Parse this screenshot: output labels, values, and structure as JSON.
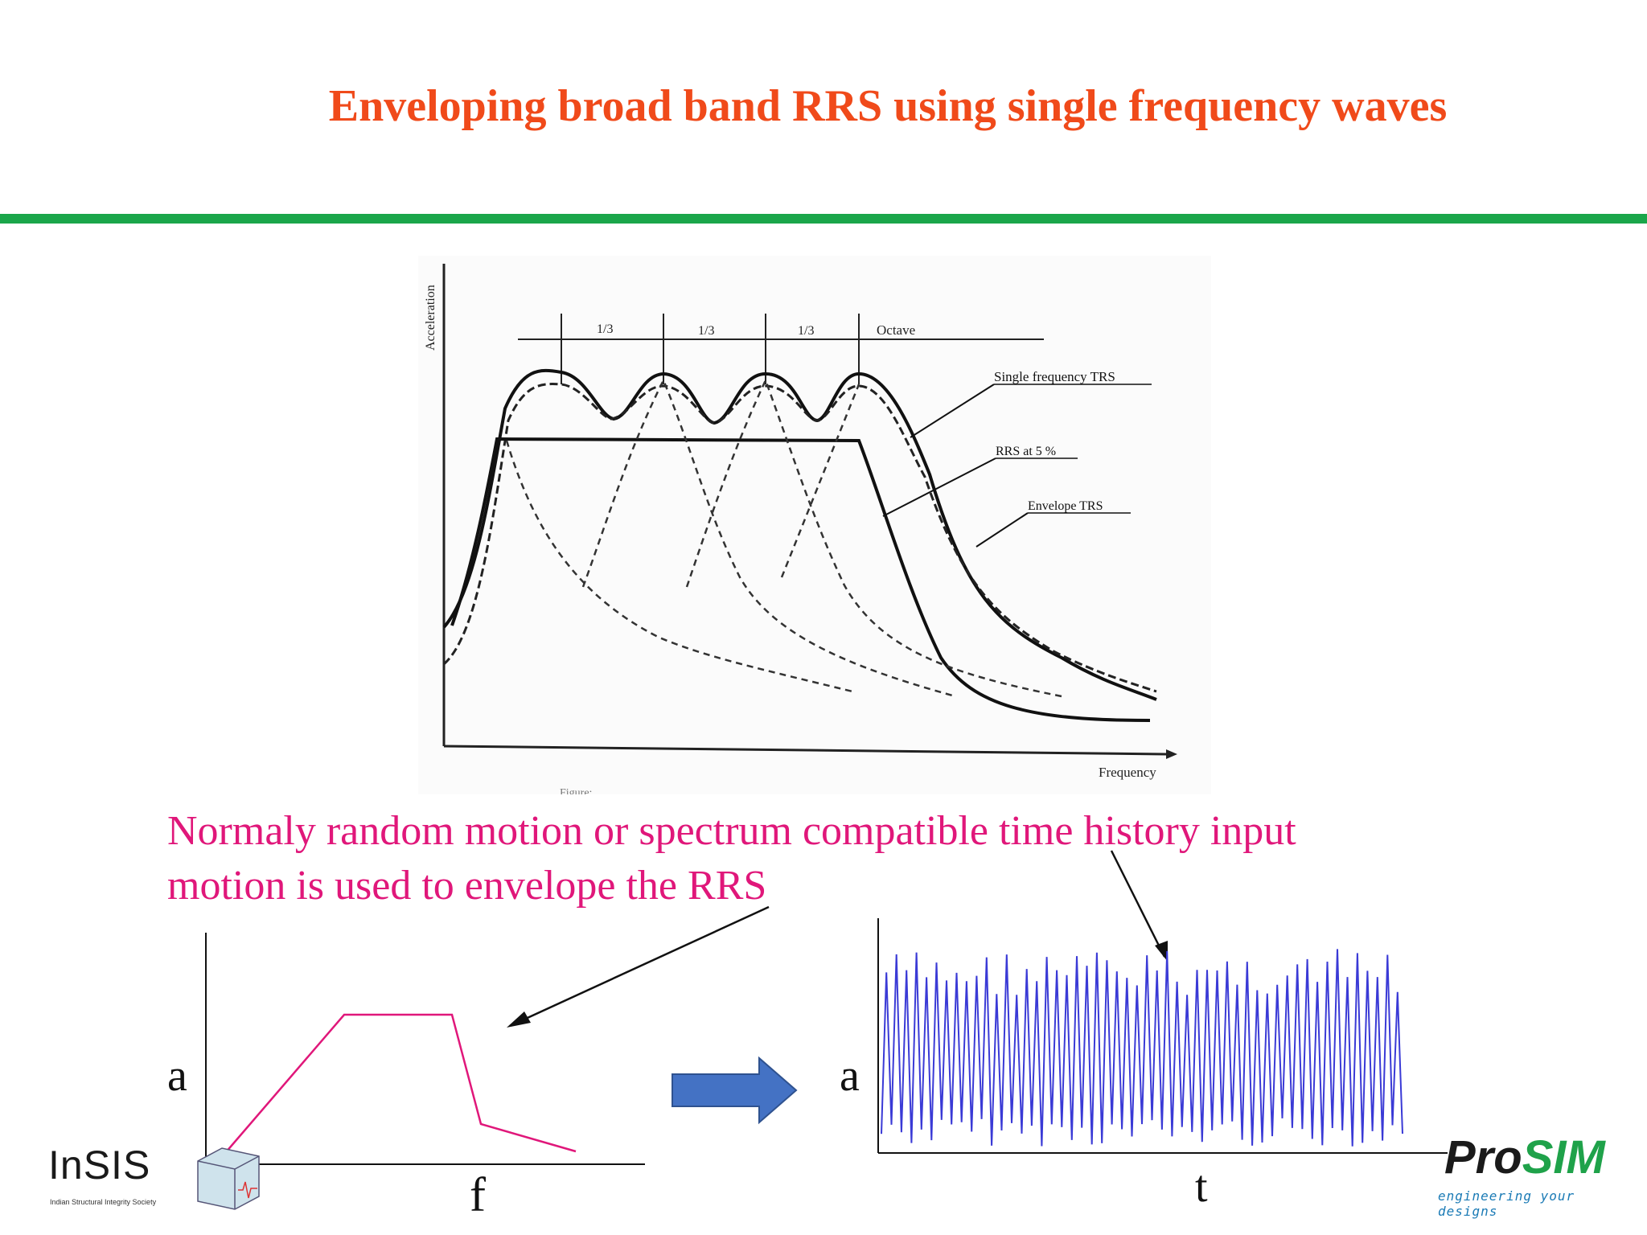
{
  "title": "Enveloping broad band RRS using single frequency waves",
  "figure": {
    "y_axis_label": "Acceleration",
    "x_axis_label": "Frequency",
    "band_labels": [
      "1/3",
      "1/3",
      "1/3",
      "Octave"
    ],
    "callouts": [
      "Single frequency TRS",
      "RRS at 5 %",
      "Envelope TRS"
    ],
    "caption_fragment": "Figure: ..."
  },
  "caption": {
    "line1": "Normaly random motion or spectrum compatible time history input",
    "line2": "motion is used to envelope the RRS"
  },
  "spectrum_sketch": {
    "y_label": "a",
    "x_label": "f"
  },
  "time_history_sketch": {
    "y_label": "a",
    "x_label": "t"
  },
  "colors": {
    "title": "#f04a1a",
    "rule": "#1aa64a",
    "caption": "#e0177a",
    "spectrum_line": "#e0177a",
    "time_history_line": "#3a3ad6",
    "arrow_fill": "#4472c4"
  },
  "logos": {
    "insis_name": "InSIS",
    "insis_tag": "Indian Structural Integrity Society",
    "prosim_pro": "Pro",
    "prosim_sim": "SIM",
    "prosim_tag": "engineering your designs"
  }
}
